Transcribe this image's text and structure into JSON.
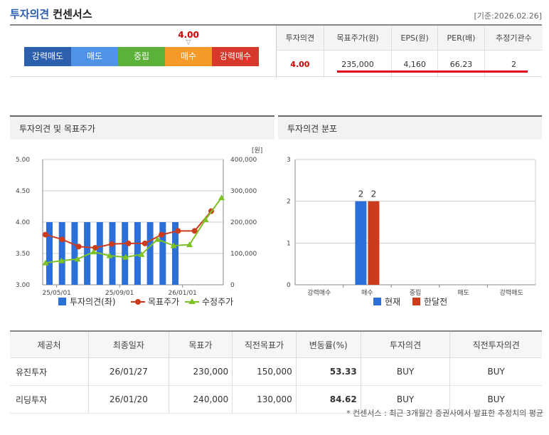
{
  "header": {
    "title_main": "투자의견",
    "title_sub": "컨센서스",
    "base_date": "[기준:2026.02.26]"
  },
  "opinion_bar": {
    "current_value": "4.00",
    "current_fraction": 0.75,
    "cells": [
      {
        "label": "강력매도",
        "color": "#2c5fae"
      },
      {
        "label": "매도",
        "color": "#4f93e6"
      },
      {
        "label": "중립",
        "color": "#5bb13a"
      },
      {
        "label": "매수",
        "color": "#f39a2a"
      },
      {
        "label": "강력매수",
        "color": "#d6392b"
      }
    ]
  },
  "summary_table": {
    "headers": [
      "투자의견",
      "목표주가(원)",
      "EPS(원)",
      "PER(배)",
      "추정기관수"
    ],
    "values": [
      "4.00",
      "235,000",
      "4,160",
      "66.23",
      "2"
    ]
  },
  "panel_left": {
    "title": "투자의견 및 목표주가"
  },
  "panel_right": {
    "title": "투자의견 분포"
  },
  "chart_data": [
    {
      "type": "bar",
      "x_ticks": [
        "25/05/01",
        "25/09/01",
        "26/01/01"
      ],
      "y_left_ticks": [
        "5.00",
        "4.50",
        "4.00",
        "3.50",
        "3.00"
      ],
      "y_left_range": [
        3.0,
        5.0
      ],
      "y_right_ticks": [
        "400,000",
        "300,000",
        "200,000",
        "100,000",
        "0"
      ],
      "y_right_range": [
        0,
        400000
      ],
      "y_right_unit": "[원]",
      "series": [
        {
          "name": "투자의견(좌)",
          "type": "bar",
          "color": "#2d6fd8",
          "values": [
            4.0,
            4.0,
            4.0,
            4.0,
            4.0,
            4.0,
            4.0,
            4.0,
            4.0,
            4.0,
            4.0
          ]
        },
        {
          "name": "목표주가",
          "type": "line",
          "color": "#cc3b1c",
          "values": [
            160000,
            145000,
            122000,
            118000,
            130000,
            132000,
            132000,
            160000,
            172000,
            172000,
            235000
          ]
        },
        {
          "name": "수정주가",
          "type": "line",
          "color": "#7cc225",
          "values": [
            70000,
            77000,
            82000,
            105000,
            93000,
            88000,
            97000,
            145000,
            125000,
            128000,
            208000,
            278000
          ]
        }
      ]
    },
    {
      "type": "bar",
      "categories": [
        "강력매수",
        "매수",
        "중립",
        "매도",
        "강력매도"
      ],
      "y_ticks": [
        "3",
        "2",
        "1",
        "0"
      ],
      "y_range": [
        0,
        3
      ],
      "series": [
        {
          "name": "현재",
          "color": "#2d6fd8",
          "values": [
            0,
            2,
            0,
            0,
            0
          ]
        },
        {
          "name": "한달전",
          "color": "#cc3b1c",
          "values": [
            0,
            2,
            0,
            0,
            0
          ]
        }
      ]
    }
  ],
  "detail_table": {
    "headers": [
      "제공처",
      "최종일자",
      "목표가",
      "직전목표가",
      "변동률(%)",
      "투자의견",
      "직전투자의견"
    ],
    "rows": [
      [
        "유진투자",
        "26/01/27",
        "230,000",
        "150,000",
        "53.33",
        "BUY",
        "BUY"
      ],
      [
        "리딩투자",
        "26/01/20",
        "240,000",
        "130,000",
        "84.62",
        "BUY",
        "BUY"
      ]
    ]
  },
  "footnote": "* 컨센서스 : 최근 3개월간 증권사에서 발표한 추정치의 평균"
}
